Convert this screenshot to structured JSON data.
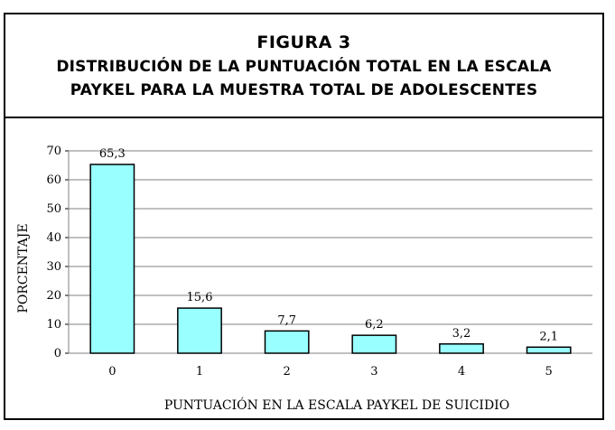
{
  "header": {
    "figure_label": "FIGURA 3",
    "title_line1": "DISTRIBUCIÓN DE LA PUNTUACIÓN TOTAL EN LA ESCALA",
    "title_line2": "PAYKEL PARA LA MUESTRA TOTAL DE ADOLESCENTES"
  },
  "chart_data": {
    "type": "bar",
    "title": "DISTRIBUCIÓN DE LA PUNTUACIÓN TOTAL EN LA ESCALA PAYKEL PARA LA MUESTRA TOTAL DE ADOLESCENTES",
    "categories": [
      "0",
      "1",
      "2",
      "3",
      "4",
      "5"
    ],
    "values": [
      65.3,
      15.6,
      7.7,
      6.2,
      3.2,
      2.1
    ],
    "data_labels": [
      "65,3",
      "15,6",
      "7,7",
      "6,2",
      "3,2",
      "2,1"
    ],
    "xlabel": "PUNTUACIÓN EN LA ESCALA PAYKEL DE SUICIDIO",
    "ylabel": "PORCENTAJE",
    "ylim": [
      0,
      70
    ],
    "yticks": [
      "0",
      "10",
      "20",
      "30",
      "40",
      "50",
      "60",
      "70"
    ],
    "grid": true,
    "legend": "none",
    "colors": {
      "bar_fill": "#99FFFF",
      "bar_stroke": "#000000",
      "grid": "#808080"
    }
  }
}
